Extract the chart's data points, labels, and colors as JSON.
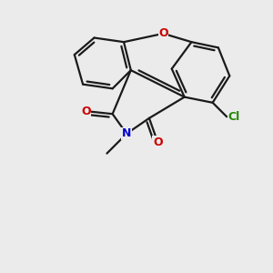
{
  "bg_color": "#ebebeb",
  "bond_color": "#1a1a1a",
  "o_color": "#cc0000",
  "n_color": "#0000cc",
  "cl_color": "#228800",
  "line_width": 1.6,
  "xlim": [
    -1.0,
    8.5
  ],
  "ylim": [
    -1.5,
    7.5
  ]
}
